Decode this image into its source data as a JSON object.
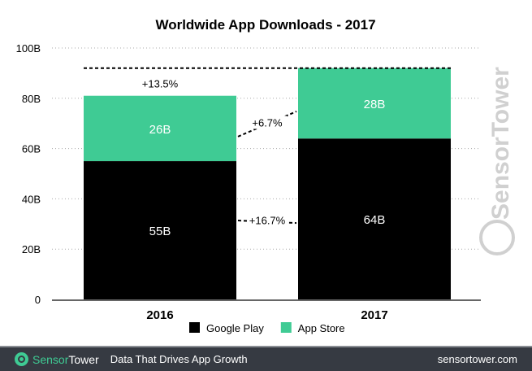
{
  "chart_data": {
    "type": "bar",
    "stacked": true,
    "title": "Worldwide App Downloads - 2017",
    "categories": [
      "2016",
      "2017"
    ],
    "series": [
      {
        "name": "Google Play",
        "values": [
          55,
          64
        ],
        "labels": [
          "55B",
          "64B"
        ],
        "color": "#000000"
      },
      {
        "name": "App Store",
        "values": [
          26,
          28
        ],
        "labels": [
          "26B",
          "28B"
        ],
        "color": "#3fcb94"
      }
    ],
    "ylim": [
      0,
      100
    ],
    "yticks": [
      0,
      20,
      40,
      60,
      80,
      100
    ],
    "ytick_labels": [
      "0",
      "20B",
      "40B",
      "60B",
      "80B",
      "100B"
    ],
    "grid": "dotted horizontal",
    "legend": "bottom-center",
    "annotations": {
      "total_growth": "+13.5%",
      "app_store_growth": "+6.7%",
      "google_play_growth": "+16.7%"
    }
  },
  "watermark": "SensorTower",
  "footer": {
    "brand_a": "Sensor",
    "brand_b": "Tower",
    "tagline": "Data That Drives App Growth",
    "url": "sensortower.com"
  }
}
